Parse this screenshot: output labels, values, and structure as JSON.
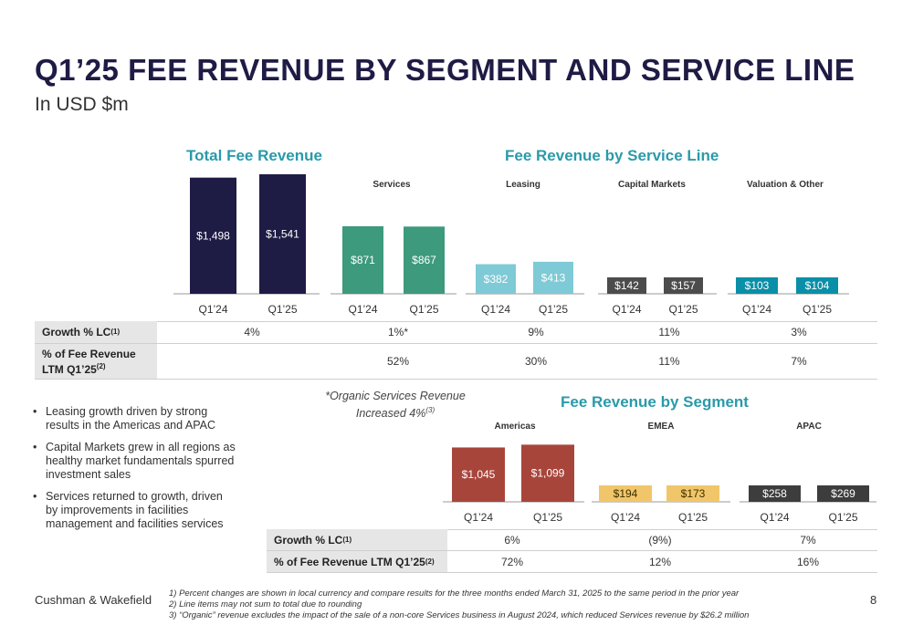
{
  "header": {
    "title": "Q1’25 FEE REVENUE BY SEGMENT AND SERVICE LINE",
    "subtitle": "In USD $m"
  },
  "sections": {
    "total": "Total Fee Revenue",
    "service_line": "Fee Revenue by Service Line",
    "segment": "Fee Revenue by Segment"
  },
  "colors": {
    "total": "#1e1b45",
    "services": "#3d9a7c",
    "leasing": "#7ecad6",
    "capital_markets": "#4c4c4c",
    "valuation": "#0a8fa8",
    "americas": "#a8453b",
    "emea": "#f1c66a",
    "apac": "#3d3d3d",
    "heading": "#2a9aa9"
  },
  "chart_data": [
    {
      "type": "bar",
      "title": "Total Fee Revenue",
      "categories": [
        "Q1’24",
        "Q1’25"
      ],
      "values": [
        1498,
        1541
      ],
      "labels": [
        "$1,498",
        "$1,541"
      ]
    },
    {
      "type": "bar",
      "title": "Services",
      "categories": [
        "Q1’24",
        "Q1’25"
      ],
      "values": [
        871,
        867
      ],
      "labels": [
        "$871",
        "$867"
      ]
    },
    {
      "type": "bar",
      "title": "Leasing",
      "categories": [
        "Q1’24",
        "Q1’25"
      ],
      "values": [
        382,
        413
      ],
      "labels": [
        "$382",
        "$413"
      ]
    },
    {
      "type": "bar",
      "title": "Capital Markets",
      "categories": [
        "Q1’24",
        "Q1’25"
      ],
      "values": [
        142,
        157
      ],
      "labels": [
        "$142",
        "$157"
      ]
    },
    {
      "type": "bar",
      "title": "Valuation & Other",
      "categories": [
        "Q1’24",
        "Q1’25"
      ],
      "values": [
        103,
        104
      ],
      "labels": [
        "$103",
        "$104"
      ]
    },
    {
      "type": "bar",
      "title": "Americas",
      "categories": [
        "Q1’24",
        "Q1’25"
      ],
      "values": [
        1045,
        1099
      ],
      "labels": [
        "$1,045",
        "$1,099"
      ]
    },
    {
      "type": "bar",
      "title": "EMEA",
      "categories": [
        "Q1’24",
        "Q1’25"
      ],
      "values": [
        194,
        173
      ],
      "labels": [
        "$194",
        "$173"
      ]
    },
    {
      "type": "bar",
      "title": "APAC",
      "categories": [
        "Q1’24",
        "Q1’25"
      ],
      "values": [
        258,
        269
      ],
      "labels": [
        "$258",
        "$269"
      ]
    }
  ],
  "service_table": {
    "growth_label": "Growth % LC",
    "growth_sup": "(1)",
    "share_label_1": "% of Fee Revenue",
    "share_label_2": "LTM Q1’25",
    "share_sup": "(2)",
    "growth": [
      "4%",
      "1%*",
      "9%",
      "11%",
      "3%"
    ],
    "share": [
      "",
      "52%",
      "30%",
      "11%",
      "7%"
    ]
  },
  "segment_table": {
    "growth_label": "Growth % LC",
    "growth_sup": "(1)",
    "share_label": "% of Fee Revenue LTM Q1’25",
    "share_sup": "(2)",
    "growth": [
      "6%",
      "(9%)",
      "7%"
    ],
    "share": [
      "72%",
      "12%",
      "16%"
    ]
  },
  "organic_note": {
    "line1": "*Organic Services Revenue",
    "line2": "Increased 4%",
    "sup": "(3)"
  },
  "bullets": [
    "Leasing growth driven by strong results in the Americas and APAC",
    "Capital Markets grew in all regions as healthy market fundamentals spurred investment sales",
    "Services returned to growth, driven by improvements in facilities management and facilities services"
  ],
  "footer": {
    "brand": "Cushman & Wakefield",
    "page": "8",
    "notes": [
      "1)    Percent changes are shown in local currency and compare results for the three months ended March 31, 2025 to the same period in the prior year",
      "2)    Line items may not sum to total due to rounding",
      "3)    “Organic” revenue excludes the impact of the sale of a non-core Services business in August 2024, which reduced Services revenue by $26.2 million"
    ]
  }
}
